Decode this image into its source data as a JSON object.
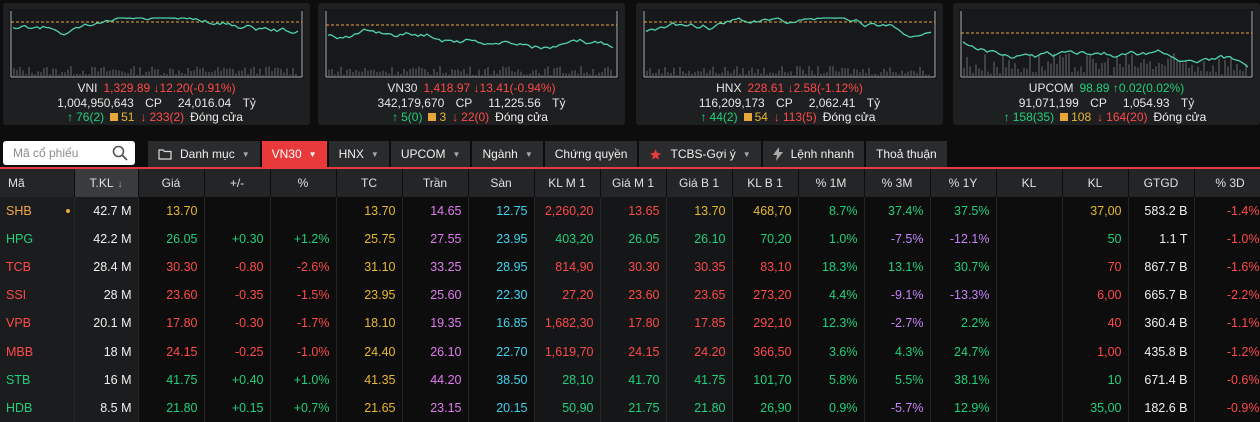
{
  "colors": {
    "up": "#21d07a",
    "down": "#ff4a4a",
    "ref": "#e8b830",
    "ceil": "#e07cf0",
    "floor": "#3fd3f0"
  },
  "indices": [
    {
      "name": "VNI",
      "value": "1,329.89",
      "change": "12.20(-0.91%)",
      "volume": "1,004,950,643",
      "vol_unit": "CP",
      "turnover": "24,016.04",
      "turnover_unit": "Tỷ",
      "up": "76(2)",
      "ref": "51",
      "down": "233(2)",
      "status": "Đóng cửa"
    },
    {
      "name": "VN30",
      "value": "1,418.97",
      "change": "13.41(-0.94%)",
      "volume": "342,179,670",
      "vol_unit": "CP",
      "turnover": "11,225.56",
      "turnover_unit": "Tỷ",
      "up": "5(0)",
      "ref": "3",
      "down": "22(0)",
      "status": "Đóng cửa"
    },
    {
      "name": "HNX",
      "value": "228.61",
      "change": "2.58(-1.12%)",
      "volume": "116,209,173",
      "vol_unit": "CP",
      "turnover": "2,062.41",
      "turnover_unit": "Tỷ",
      "up": "44(2)",
      "ref": "54",
      "down": "113(5)",
      "status": "Đóng cửa"
    },
    {
      "name": "UPCOM",
      "value": "98.89",
      "change": "0.02(0.02%)",
      "volume": "91,071,199",
      "vol_unit": "CP",
      "turnover": "1,054.93",
      "turnover_unit": "Tỷ",
      "up": "158(35)",
      "ref": "108",
      "down": "164(20)",
      "status": "Đóng cửa"
    }
  ],
  "search": {
    "placeholder": "Mã cổ phiếu"
  },
  "tabs": [
    {
      "label": "Danh mục",
      "icon": "folder-icon"
    },
    {
      "label": "VN30",
      "active": true
    },
    {
      "label": "HNX"
    },
    {
      "label": "UPCOM"
    },
    {
      "label": "Ngành"
    },
    {
      "label": "Chứng quyền"
    },
    {
      "label": "TCBS-Gợi ý",
      "icon": "star-icon"
    },
    {
      "label": "Lệnh nhanh",
      "icon": "lightning-icon"
    },
    {
      "label": "Thoả thuận"
    }
  ],
  "table": {
    "headers": [
      "Mã",
      "T.KL",
      "Giá",
      "+/-",
      "%",
      "TC",
      "Trần",
      "Sàn",
      "KL M 1",
      "Giá M 1",
      "Giá B 1",
      "KL B 1",
      "% 1M",
      "% 3M",
      "% 1Y",
      "KL",
      "KL",
      "GTGD",
      "% 3D"
    ],
    "rows": [
      {
        "code": "SHB",
        "tkl": "42.7 M",
        "price": "13.70",
        "chg": "",
        "pct": "",
        "tc": "13.70",
        "tran": "14.65",
        "san": "12.75",
        "klm1": "2,260,20",
        "giam1": "13.65",
        "giab1": "13.70",
        "klb1": "468,70",
        "p1m": "8.7%",
        "p3m": "37.4%",
        "p1y": "37.5%",
        "kl1": "",
        "kl2": "37,00",
        "gtgd": "583.2 B",
        "p3d": "-1.4%",
        "cls": "ref",
        "c1m": "up",
        "c3m": "up",
        "c1y": "up",
        "cm1": "down",
        "cb1": "ref",
        "dot": true
      },
      {
        "code": "HPG",
        "tkl": "42.2 M",
        "price": "26.05",
        "chg": "+0.30",
        "pct": "+1.2%",
        "tc": "25.75",
        "tran": "27.55",
        "san": "23.95",
        "klm1": "403,20",
        "giam1": "26.05",
        "giab1": "26.10",
        "klb1": "70,20",
        "p1m": "1.0%",
        "p3m": "-7.5%",
        "p1y": "-12.1%",
        "kl1": "",
        "kl2": "50",
        "gtgd": "1.1 T",
        "p3d": "-1.0%",
        "cls": "up",
        "c1m": "up",
        "c3m": "down",
        "c1y": "down",
        "cm1": "up",
        "cb1": "up"
      },
      {
        "code": "TCB",
        "tkl": "28.4 M",
        "price": "30.30",
        "chg": "-0.80",
        "pct": "-2.6%",
        "tc": "31.10",
        "tran": "33.25",
        "san": "28.95",
        "klm1": "814,90",
        "giam1": "30.30",
        "giab1": "30.35",
        "klb1": "83,10",
        "p1m": "18.3%",
        "p3m": "13.1%",
        "p1y": "30.7%",
        "kl1": "",
        "kl2": "70",
        "gtgd": "867.7 B",
        "p3d": "-1.6%",
        "cls": "down",
        "c1m": "up",
        "c3m": "up",
        "c1y": "up",
        "cm1": "down",
        "cb1": "down"
      },
      {
        "code": "SSI",
        "tkl": "28 M",
        "price": "23.60",
        "chg": "-0.35",
        "pct": "-1.5%",
        "tc": "23.95",
        "tran": "25.60",
        "san": "22.30",
        "klm1": "27,20",
        "giam1": "23.60",
        "giab1": "23.65",
        "klb1": "273,20",
        "p1m": "4.4%",
        "p3m": "-9.1%",
        "p1y": "-13.3%",
        "kl1": "",
        "kl2": "6,00",
        "gtgd": "665.7 B",
        "p3d": "-2.2%",
        "cls": "down",
        "c1m": "up",
        "c3m": "down",
        "c1y": "down",
        "cm1": "down",
        "cb1": "down"
      },
      {
        "code": "VPB",
        "tkl": "20.1 M",
        "price": "17.80",
        "chg": "-0.30",
        "pct": "-1.7%",
        "tc": "18.10",
        "tran": "19.35",
        "san": "16.85",
        "klm1": "1,682,30",
        "giam1": "17.80",
        "giab1": "17.85",
        "klb1": "292,10",
        "p1m": "12.3%",
        "p3m": "-2.7%",
        "p1y": "2.2%",
        "kl1": "",
        "kl2": "40",
        "gtgd": "360.4 B",
        "p3d": "-1.1%",
        "cls": "down",
        "c1m": "up",
        "c3m": "down",
        "c1y": "up",
        "cm1": "down",
        "cb1": "down"
      },
      {
        "code": "MBB",
        "tkl": "18 M",
        "price": "24.15",
        "chg": "-0.25",
        "pct": "-1.0%",
        "tc": "24.40",
        "tran": "26.10",
        "san": "22.70",
        "klm1": "1,619,70",
        "giam1": "24.15",
        "giab1": "24.20",
        "klb1": "366,50",
        "p1m": "3.6%",
        "p3m": "4.3%",
        "p1y": "24.7%",
        "kl1": "",
        "kl2": "1,00",
        "gtgd": "435.8 B",
        "p3d": "-1.2%",
        "cls": "down",
        "c1m": "up",
        "c3m": "up",
        "c1y": "up",
        "cm1": "down",
        "cb1": "down"
      },
      {
        "code": "STB",
        "tkl": "16 M",
        "price": "41.75",
        "chg": "+0.40",
        "pct": "+1.0%",
        "tc": "41.35",
        "tran": "44.20",
        "san": "38.50",
        "klm1": "28,10",
        "giam1": "41.70",
        "giab1": "41.75",
        "klb1": "101,70",
        "p1m": "5.8%",
        "p3m": "5.5%",
        "p1y": "38.1%",
        "kl1": "",
        "kl2": "10",
        "gtgd": "671.4 B",
        "p3d": "-0.6%",
        "cls": "up",
        "c1m": "up",
        "c3m": "up",
        "c1y": "up",
        "cm1": "up",
        "cb1": "up"
      },
      {
        "code": "HDB",
        "tkl": "8.5 M",
        "price": "21.80",
        "chg": "+0.15",
        "pct": "+0.7%",
        "tc": "21.65",
        "tran": "23.15",
        "san": "20.15",
        "klm1": "50,90",
        "giam1": "21.75",
        "giab1": "21.80",
        "klb1": "26,90",
        "p1m": "0.9%",
        "p3m": "-5.7%",
        "p1y": "12.9%",
        "kl1": "",
        "kl2": "35,00",
        "gtgd": "182.6 B",
        "p3d": "-0.9%",
        "cls": "up",
        "c1m": "up",
        "c3m": "down",
        "c1y": "up",
        "cm1": "up",
        "cb1": "up"
      }
    ]
  }
}
